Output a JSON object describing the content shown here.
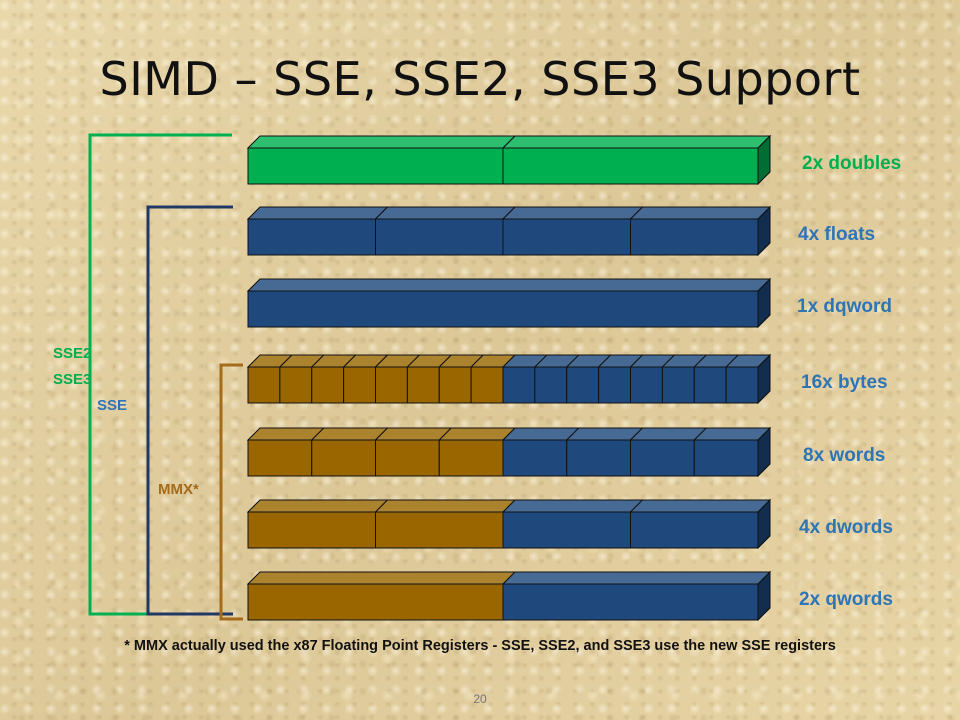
{
  "slide": {
    "title": "SIMD – SSE, SSE2, SSE3 Support",
    "footnote": "* MMX actually used the x87 Floating Point Registers  - SSE, SSE2, and SSE3 use the new SSE registers",
    "page_number": "20"
  },
  "colors": {
    "green": "#00b050",
    "blue": "#1f497d",
    "gold": "#996600",
    "label_green": "#00b050",
    "label_blue": "#2e75b6",
    "bracket_green": "#00b050",
    "bracket_blue": "#1f3864",
    "bracket_gold": "#a36b1a"
  },
  "brackets": [
    {
      "name": "sse2-sse3-bracket",
      "lines": [
        "SSE2",
        "SSE3"
      ],
      "color": "green"
    },
    {
      "name": "sse-bracket",
      "lines": [
        "SSE"
      ],
      "color": "blue"
    },
    {
      "name": "mmx-bracket",
      "lines": [
        "MMX*"
      ],
      "color": "gold"
    }
  ],
  "rows": [
    {
      "label": "2x doubles",
      "label_color": "label_green",
      "cells": [
        "green",
        "green"
      ]
    },
    {
      "label": "4x floats",
      "label_color": "label_blue",
      "cells": [
        "blue",
        "blue",
        "blue",
        "blue"
      ]
    },
    {
      "label": "1x dqword",
      "label_color": "label_blue",
      "cells": [
        "blue"
      ]
    },
    {
      "label": "16x bytes",
      "label_color": "label_blue",
      "cells": [
        "gold",
        "gold",
        "gold",
        "gold",
        "gold",
        "gold",
        "gold",
        "gold",
        "blue",
        "blue",
        "blue",
        "blue",
        "blue",
        "blue",
        "blue",
        "blue"
      ]
    },
    {
      "label": "8x words",
      "label_color": "label_blue",
      "cells": [
        "gold",
        "gold",
        "gold",
        "gold",
        "blue",
        "blue",
        "blue",
        "blue"
      ]
    },
    {
      "label": "4x dwords",
      "label_color": "label_blue",
      "cells": [
        "gold",
        "gold",
        "blue",
        "blue"
      ]
    },
    {
      "label": "2x qwords",
      "label_color": "label_blue",
      "cells": [
        "gold",
        "blue"
      ]
    }
  ]
}
